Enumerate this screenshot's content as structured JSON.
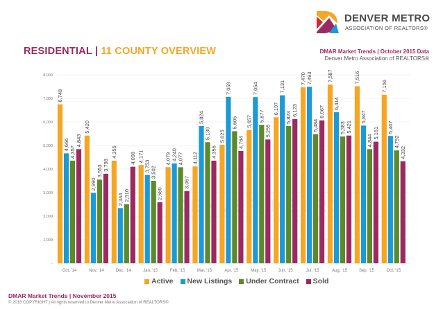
{
  "logo": {
    "title": "DENVER METRO",
    "subtitle": "ASSOCIATION OF REALTORS®",
    "colors": [
      "#f5a623",
      "#d8282f",
      "#9b2a62",
      "#1a9bd7"
    ]
  },
  "header": {
    "title_part1": "RESIDENTIAL",
    "separator": " | ",
    "title_part2": "11 COUNTY OVERVIEW",
    "right_line1": "DMAR Market Trends | October 2015 Data",
    "right_line2": "Denver Metro Association of REALTORS®"
  },
  "watermark": {
    "line1": "DENVER METRO",
    "line2": "ASSOCIATION OF REALTORS"
  },
  "footer": {
    "line1": "DMAR Market Trends | November 2015",
    "line2": "© 2015 COPYRIGHT | All rights reserved to Denver Metro Association of REALTORS®"
  },
  "chart_data": {
    "type": "bar",
    "title": "RESIDENTIAL | 11 COUNTY OVERVIEW",
    "xlabel": "",
    "ylabel": "",
    "ylim": [
      0,
      8000
    ],
    "yticks": [
      0,
      1000,
      2000,
      3000,
      4000,
      5000,
      6000,
      7000,
      8000
    ],
    "ytick_labels": [
      "-",
      "1,000",
      "2,000",
      "3,000",
      "4,000",
      "5,000",
      "6,000",
      "7,000",
      "8,000"
    ],
    "grid": true,
    "legend_position": "bottom",
    "categories": [
      "Oct, '14",
      "Nov, '14",
      "Dec, '14",
      "Jan, '15",
      "Feb, '15",
      "Mar, '15",
      "Apr, '15",
      "May, '15",
      "Jun, '15",
      "Jul, '15",
      "Aug, '15",
      "Sep, '15",
      "Oct, '15"
    ],
    "series": [
      {
        "name": "Active",
        "color": "#f5a623",
        "values": [
          6748,
          5420,
          4355,
          4171,
          4079,
          4112,
          5025,
          5657,
          6197,
          7470,
          7587,
          7516,
          7156
        ]
      },
      {
        "name": "New Listings",
        "color": "#1a9bd7",
        "values": [
          4666,
          2990,
          2344,
          3753,
          4240,
          5824,
          7059,
          7054,
          7131,
          7493,
          6414,
          5847,
          5407
        ]
      },
      {
        "name": "Under Contract",
        "color": "#5b8a2a",
        "values": [
          4357,
          3553,
          2510,
          3502,
          4077,
          5139,
          5605,
          5877,
          5823,
          5484,
          5383,
          4844,
          4792
        ]
      },
      {
        "name": "Sold",
        "color": "#9b2a62",
        "values": [
          4843,
          3798,
          4098,
          2589,
          3067,
          4356,
          4764,
          5255,
          6123,
          6067,
          5421,
          5161,
          4332
        ]
      }
    ]
  }
}
